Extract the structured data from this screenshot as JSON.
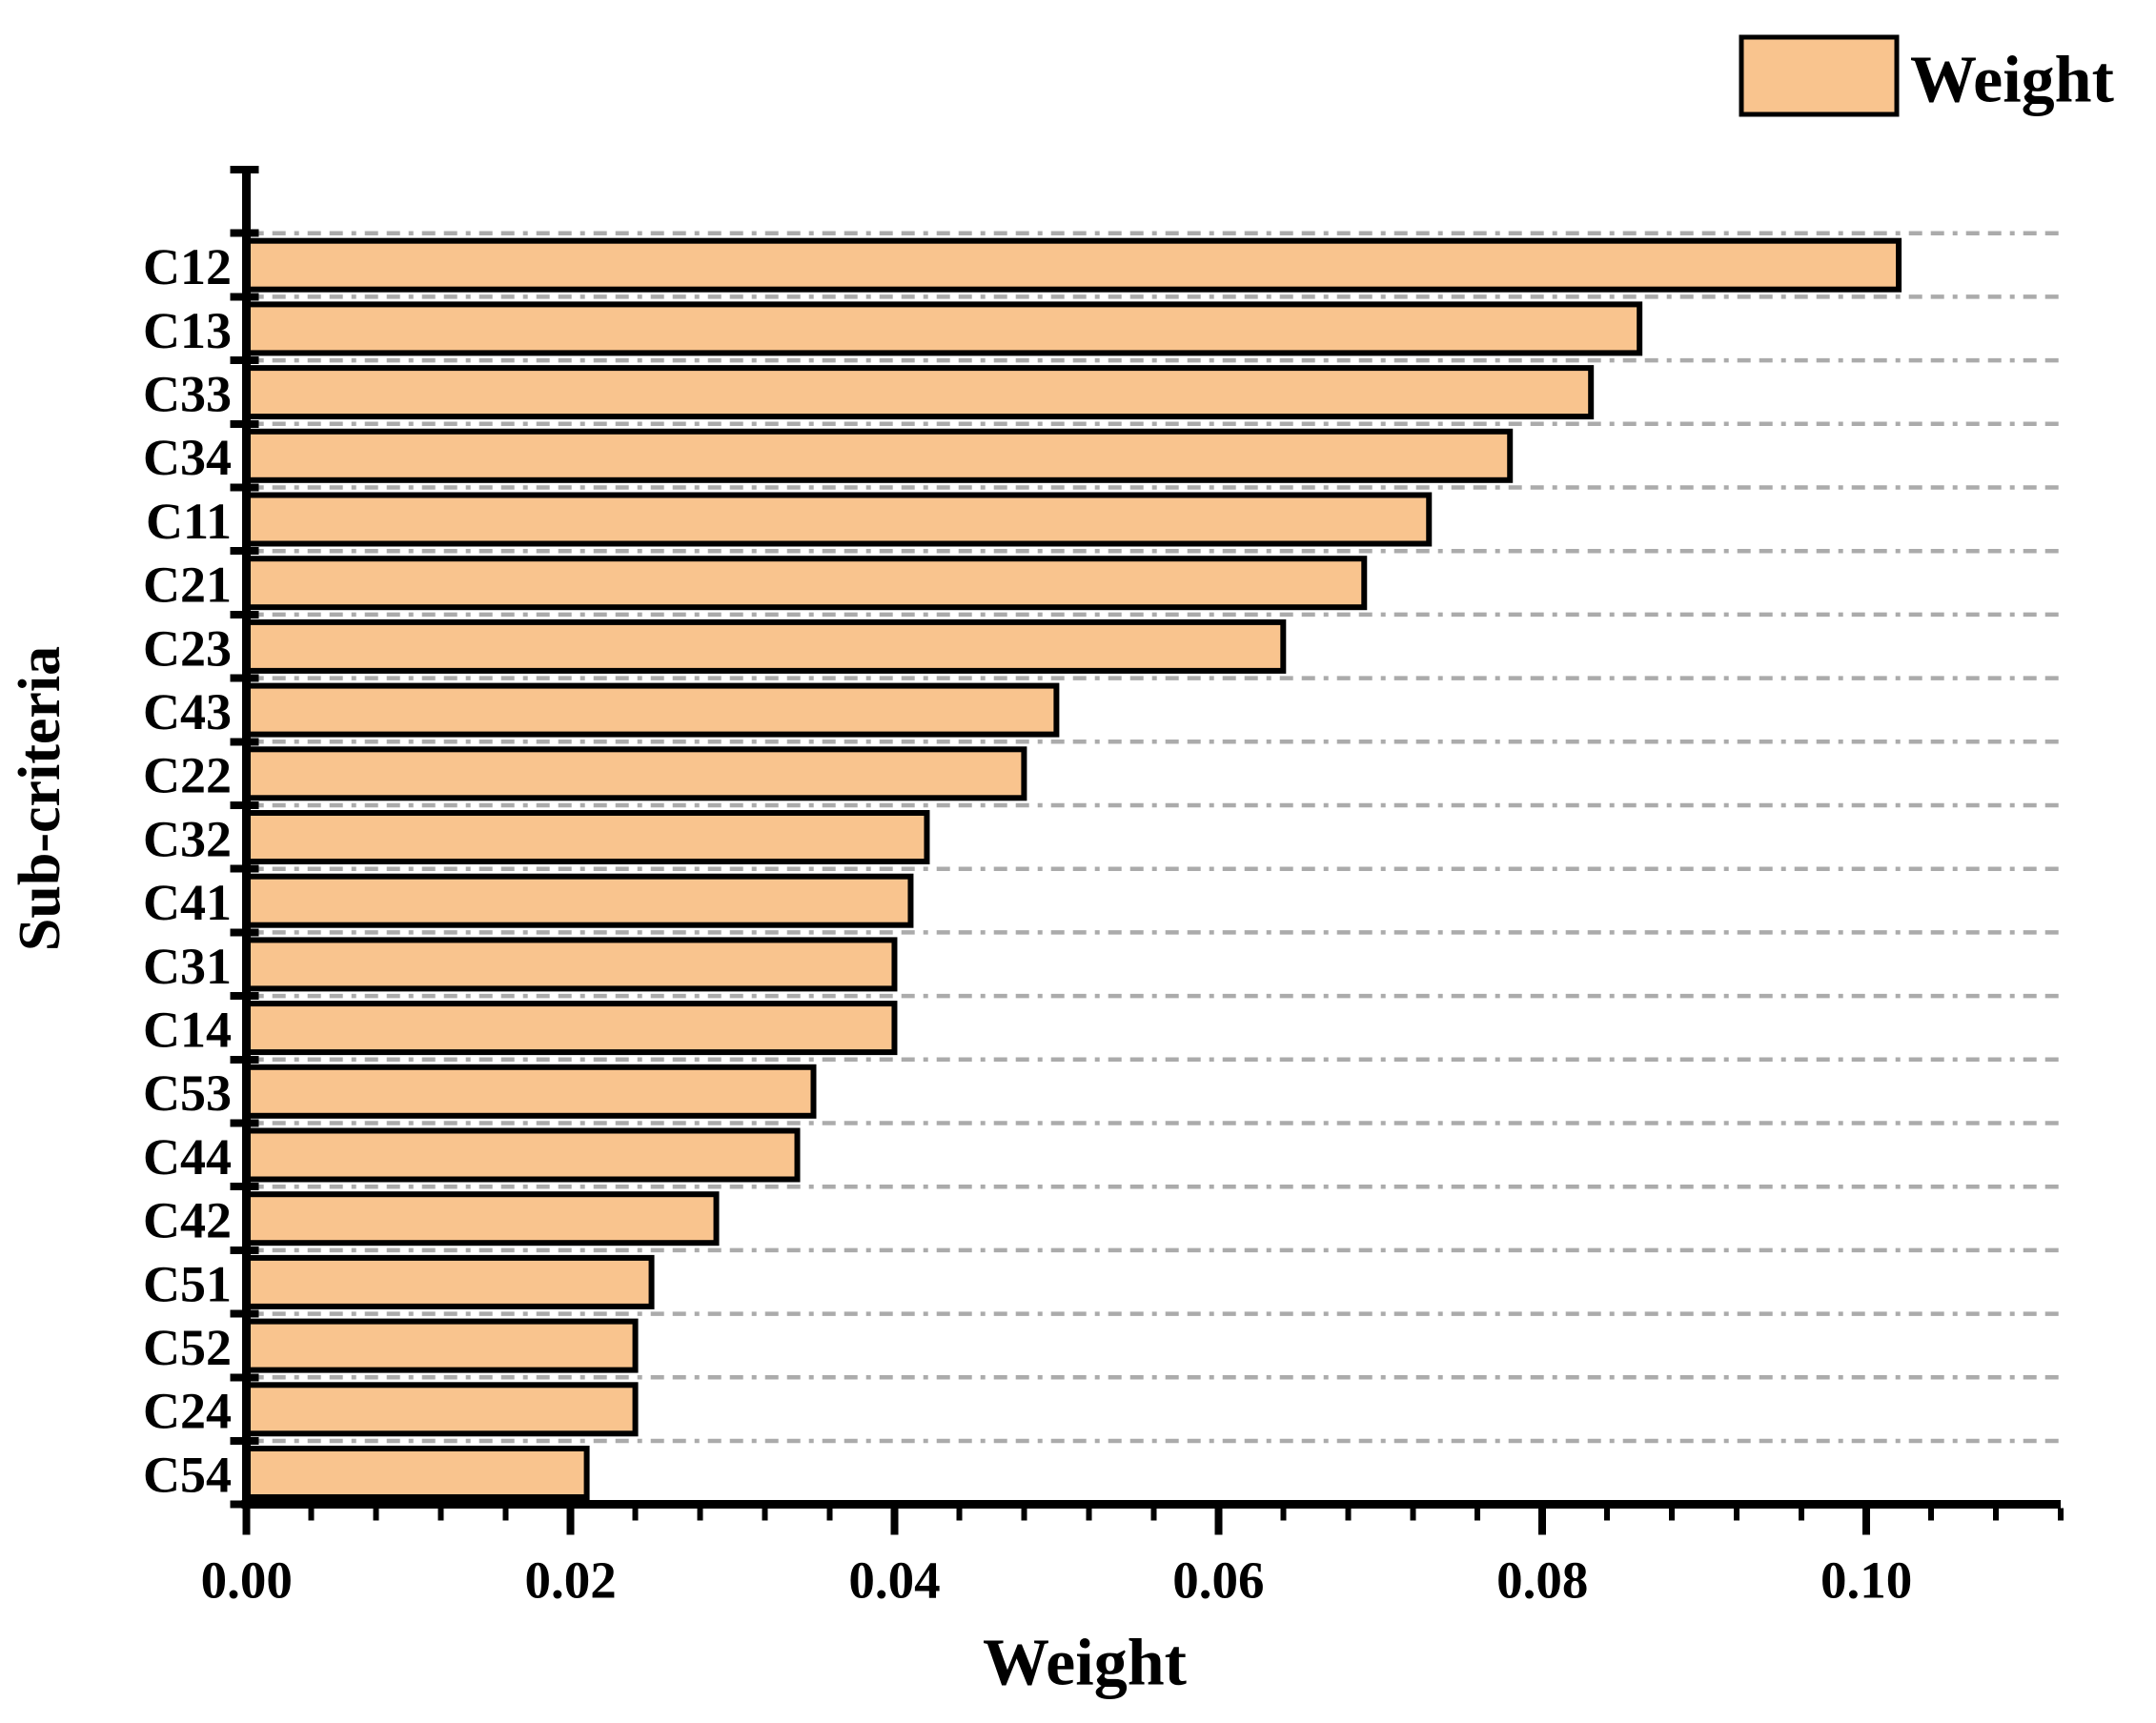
{
  "chart_data": {
    "type": "bar",
    "orientation": "horizontal",
    "categories": [
      "C12",
      "C13",
      "C33",
      "C34",
      "C11",
      "C21",
      "C23",
      "C43",
      "C22",
      "C32",
      "C41",
      "C31",
      "C14",
      "C53",
      "C44",
      "C42",
      "C51",
      "C52",
      "C24",
      "C54"
    ],
    "values": [
      0.102,
      0.086,
      0.083,
      0.078,
      0.073,
      0.069,
      0.064,
      0.05,
      0.048,
      0.042,
      0.041,
      0.04,
      0.04,
      0.035,
      0.034,
      0.029,
      0.025,
      0.024,
      0.024,
      0.021
    ],
    "series_name": "Weight",
    "xlabel": "Weight",
    "ylabel": "Sub-criteria",
    "xlim": [
      0,
      0.112
    ],
    "x_major_tick_step": 0.02,
    "x_minor_tick_step": 0.004,
    "x_tick_labels": [
      "0.00",
      "0.02",
      "0.04",
      "0.06",
      "0.08",
      "0.10"
    ],
    "grid": "horizontal dashed gridlines, dash-dash-dot",
    "legend_position": "top-right",
    "bar_color": "#f9c48e",
    "bar_border_color": "#000000",
    "grid_color": "#ababab",
    "axis_color": "#000000",
    "text_color": "#000000"
  },
  "legend": {
    "label": "Weight"
  },
  "titles": {
    "x": "Weight",
    "y": "Sub-criteria"
  }
}
